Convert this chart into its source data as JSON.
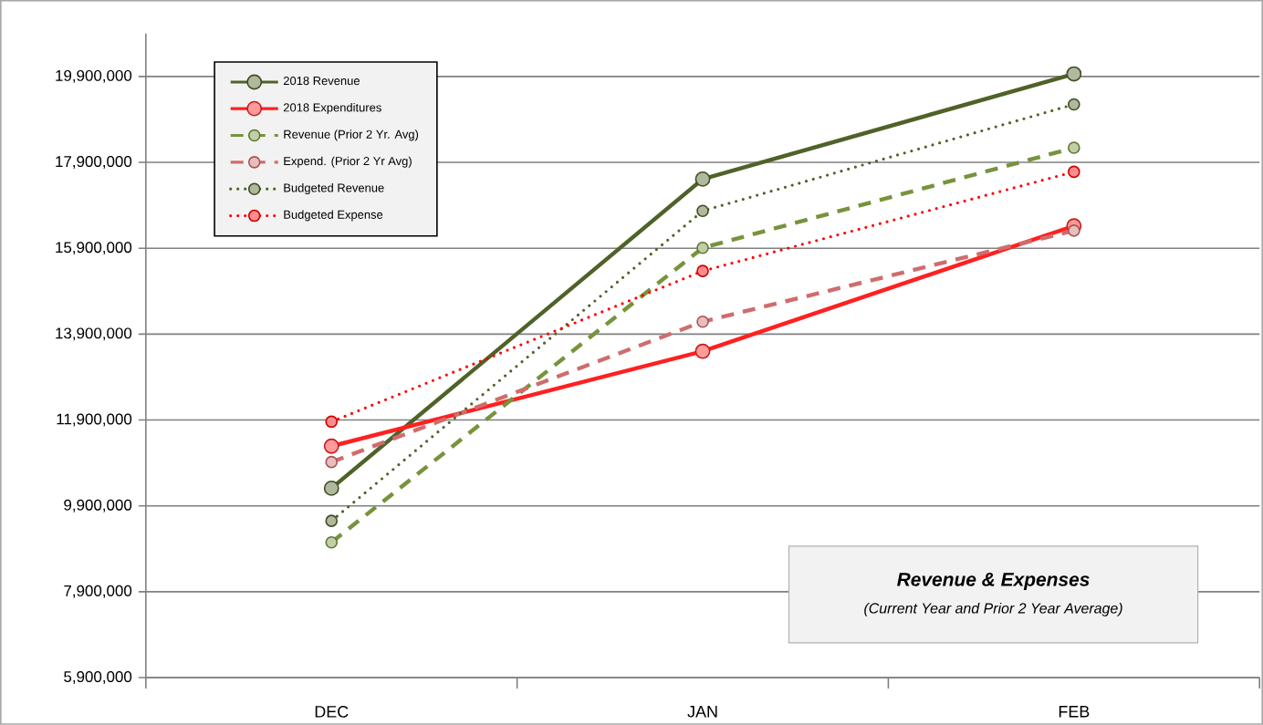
{
  "chart_data": {
    "type": "line",
    "title": "Revenue & Expenses",
    "subtitle": "(Current Year and Prior 2 Year Average)",
    "categories": [
      "DEC",
      "JAN",
      "FEB"
    ],
    "series": [
      {
        "name": "2018 Revenue",
        "color": "#4f6228",
        "line_style": "solid",
        "values": [
          10310000,
          17510000,
          19960000
        ]
      },
      {
        "name": "2018 Expenditures",
        "color": "#ff2020",
        "line_style": "solid",
        "values": [
          11290000,
          13500000,
          16420000
        ]
      },
      {
        "name": "Revenue (Prior 2 Yr. Avg)",
        "color": "#77933c",
        "line_style": "dashed",
        "values": [
          9050000,
          15910000,
          18240000
        ]
      },
      {
        "name": "Expend. (Prior 2 Yr Avg)",
        "color": "#d06c6c",
        "line_style": "dashed",
        "values": [
          10920000,
          14190000,
          16310000
        ]
      },
      {
        "name": "Budgeted Revenue",
        "color": "#4f6228",
        "line_style": "dotted",
        "values": [
          9550000,
          16770000,
          19250000
        ]
      },
      {
        "name": "Budgeted Expense",
        "color": "#ff0000",
        "line_style": "dotted",
        "values": [
          11860000,
          15370000,
          17680000
        ]
      }
    ],
    "ylim": [
      5900000,
      20900000
    ],
    "yticks": [
      {
        "value": 5900000,
        "label": "5,900,000"
      },
      {
        "value": 7900000,
        "label": "7,900,000"
      },
      {
        "value": 9900000,
        "label": "9,900,000"
      },
      {
        "value": 11900000,
        "label": "11,900,000"
      },
      {
        "value": 13900000,
        "label": "13,900,000"
      },
      {
        "value": 15900000,
        "label": "15,900,000"
      },
      {
        "value": 17900000,
        "label": "17,900,000"
      },
      {
        "value": 19900000,
        "label": "19,900,000"
      }
    ],
    "grid": "y",
    "legend": "top left",
    "marker": "circle"
  }
}
